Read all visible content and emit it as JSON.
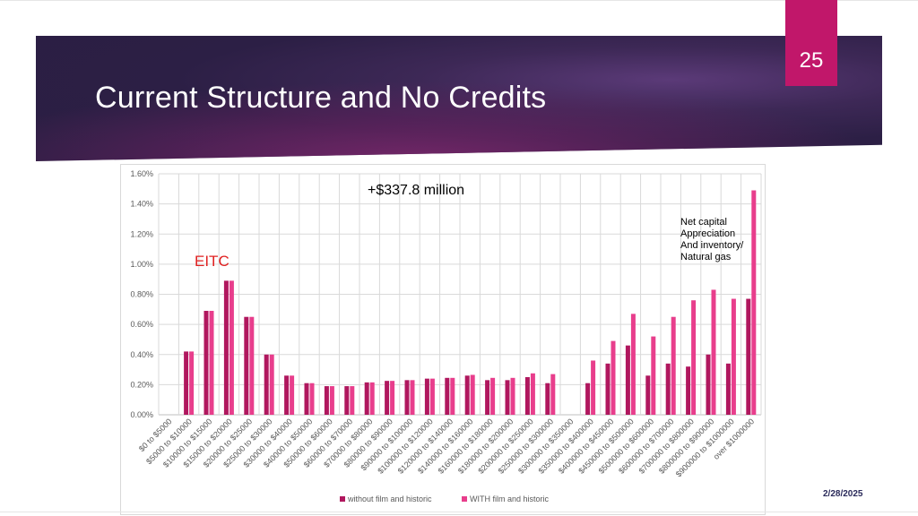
{
  "slide": {
    "number": "25",
    "title": "Current Structure and No Credits",
    "date": "2/28/2025",
    "accent_color": "#c1176a"
  },
  "chart_data": {
    "type": "bar",
    "title": "",
    "xlabel": "",
    "ylabel": "",
    "ylim": [
      0,
      0.016
    ],
    "ytick_labels": [
      "0.00%",
      "0.20%",
      "0.40%",
      "0.60%",
      "0.80%",
      "1.00%",
      "1.20%",
      "1.40%",
      "1.60%"
    ],
    "grid": true,
    "legend_position": "bottom",
    "categories": [
      "$0 to $5000",
      "$5000 to $10000",
      "$10000 to $15000",
      "$15000 to $20000",
      "$20000 to $25000",
      "$25000 to $30000",
      "$30000 to $40000",
      "$40000 to $50000",
      "$50000 to $60000",
      "$60000 to $70000",
      "$70000 to $80000",
      "$80000 to $90000",
      "$90000 to $100000",
      "$100000 to $120000",
      "$120000 to $140000",
      "$140000 to $160000",
      "$160000 to $180000",
      "$180000 to $200000",
      "$200000 to $250000",
      "$250000 to $300000",
      "$300000 to $350000",
      "$350000 to $400000",
      "$400000 to $450000",
      "$450000 to $500000",
      "$500000 to $600000",
      "$600000 to $700000",
      "$700000 to $800000",
      "$800000 to $900000",
      "$900000 to $1000000",
      "over $1000000"
    ],
    "series": [
      {
        "name": "without film and historic",
        "color": "#b0175e",
        "values": [
          0,
          0.0042,
          0.0069,
          0.0089,
          0.0065,
          0.004,
          0.0026,
          0.0021,
          0.0019,
          0.0019,
          0.00215,
          0.00225,
          0.0023,
          0.0024,
          0.00245,
          0.0026,
          0.0023,
          0.0023,
          0.0025,
          0.0021,
          0,
          0.0021,
          0.0034,
          0.0046,
          0.0026,
          0.0034,
          0.0032,
          0.004,
          0.0034,
          0.0077
        ]
      },
      {
        "name": "WITH film and historic",
        "color": "#e83e8c",
        "values": [
          0,
          0.0042,
          0.0069,
          0.0089,
          0.0065,
          0.004,
          0.0026,
          0.0021,
          0.0019,
          0.0019,
          0.00215,
          0.00225,
          0.0023,
          0.0024,
          0.00245,
          0.00265,
          0.00245,
          0.00245,
          0.00275,
          0.0027,
          0,
          0.0036,
          0.0049,
          0.0067,
          0.0052,
          0.0065,
          0.0076,
          0.0083,
          0.0077,
          0.0149
        ]
      }
    ],
    "annotations": {
      "total": "+$337.8 million",
      "eitc": "EITC",
      "note": [
        "Net capital",
        "Appreciation",
        "And inventory/",
        "Natural gas"
      ]
    }
  }
}
